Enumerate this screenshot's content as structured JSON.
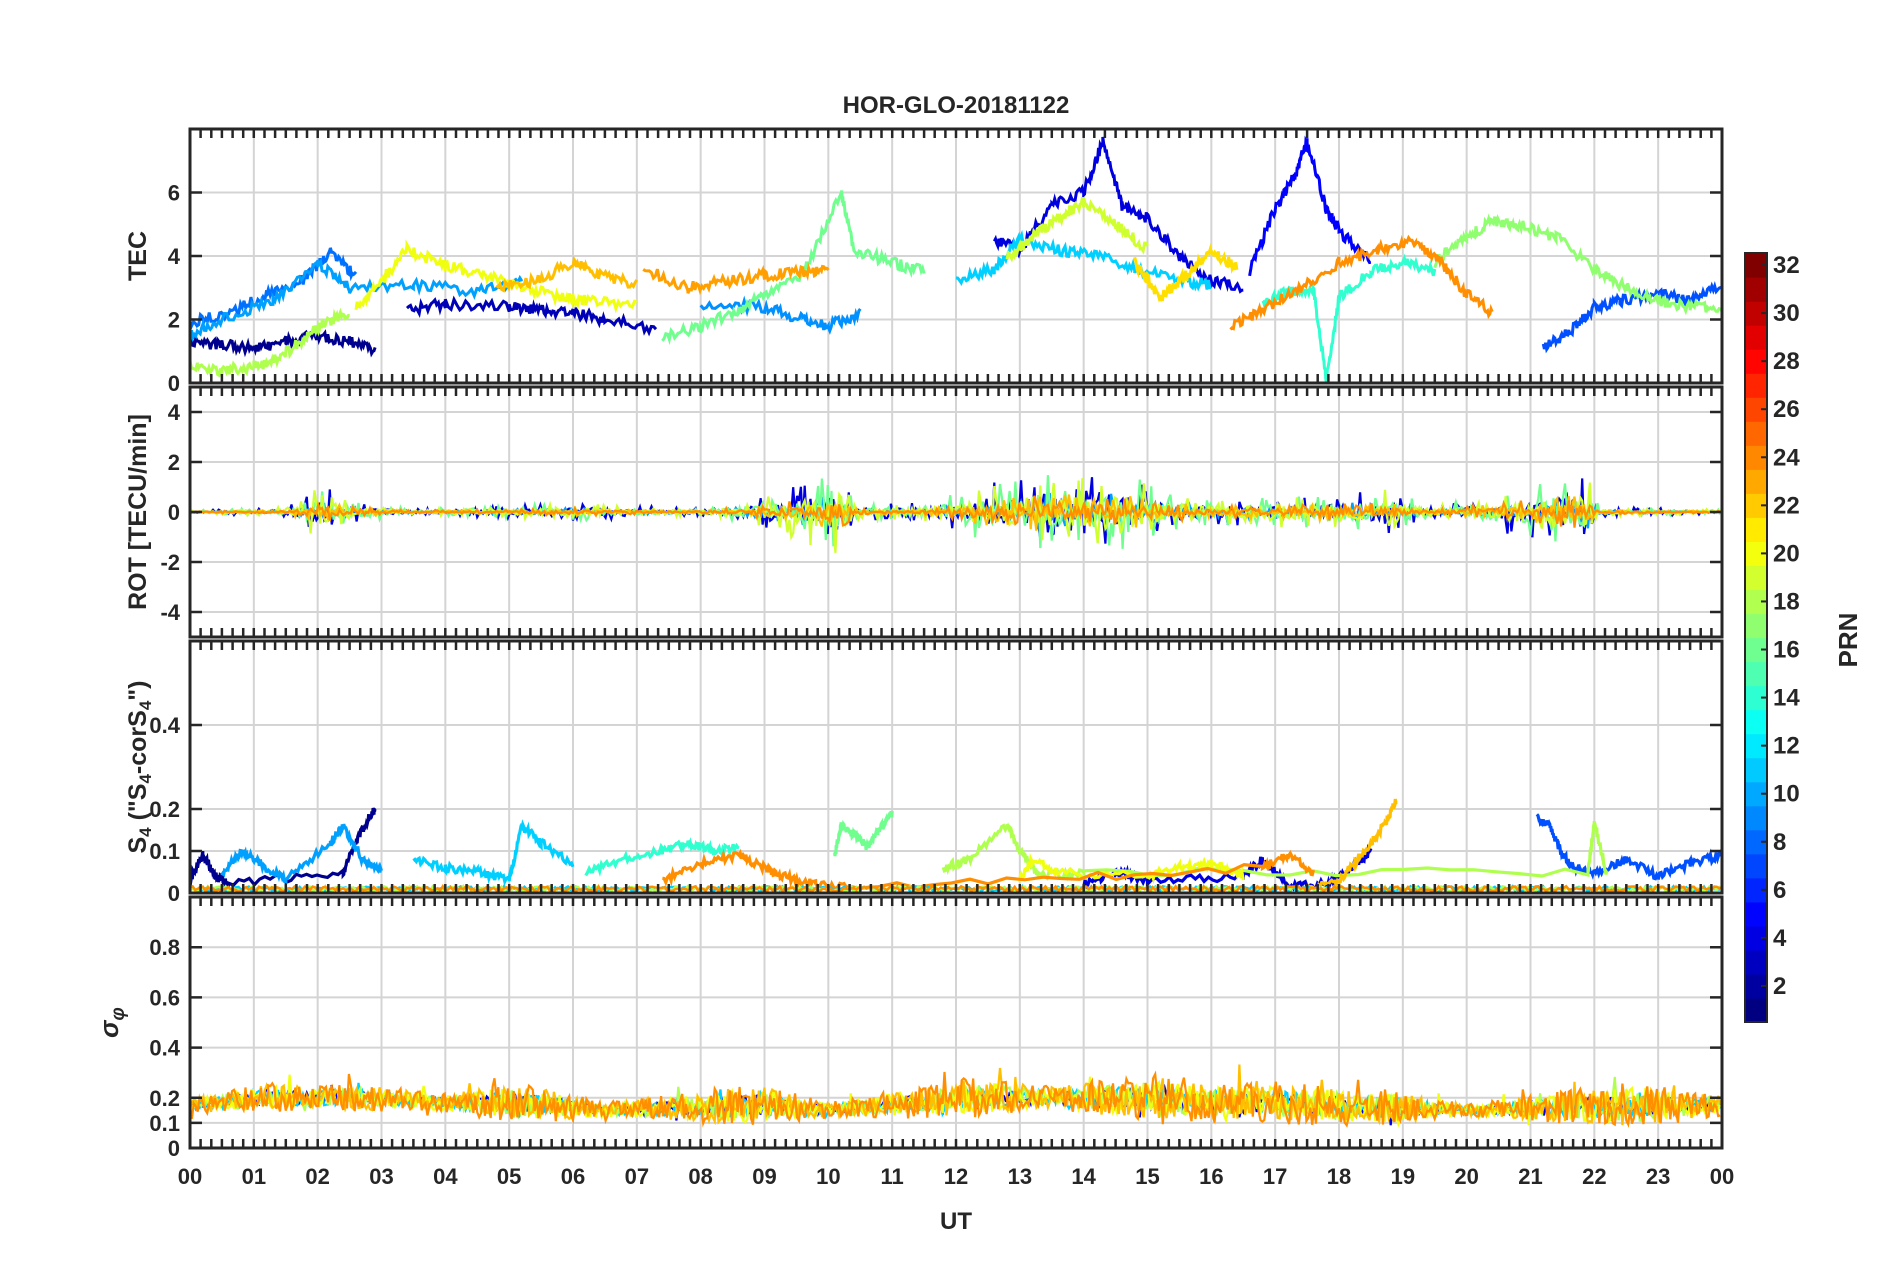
{
  "figure": {
    "title": "HOR-GLO-20181122",
    "xlabel": "UT",
    "colorbar_label": "PRN"
  },
  "chart_data": [
    {
      "type": "line",
      "panel": "tec",
      "ylabel": "TEC",
      "ylim": [
        0,
        8
      ],
      "yticks": [
        "0",
        "2",
        "4",
        "6"
      ],
      "x_unit": "hour UT",
      "xlim": [
        0,
        24
      ],
      "grid": true,
      "series": [
        {
          "prn": 1,
          "color": "#00008f",
          "x": [
            0,
            0.5,
            1,
            1.5,
            2,
            2.5,
            2.9
          ],
          "y": [
            1.3,
            1.2,
            1.1,
            1.3,
            1.5,
            1.3,
            1.0
          ]
        },
        {
          "prn": 2,
          "color": "#0000b7",
          "x": [
            3.4,
            4,
            5,
            5.5,
            6,
            6.5,
            7.3
          ],
          "y": [
            2.3,
            2.5,
            2.4,
            2.3,
            2.2,
            2.0,
            1.7
          ]
        },
        {
          "prn": 3,
          "color": "#0000df",
          "x": [
            12.6,
            13,
            13.5,
            14,
            14.3,
            14.6,
            15,
            15.5,
            16,
            16.5
          ],
          "y": [
            4.5,
            4.2,
            5.6,
            6.0,
            7.6,
            5.6,
            5.2,
            4.0,
            3.2,
            3.0
          ]
        },
        {
          "prn": 4,
          "color": "#0000ff",
          "x": [
            16.6,
            17,
            17.3,
            17.5,
            17.8,
            18,
            18.5
          ],
          "y": [
            3.5,
            5.5,
            6.5,
            7.6,
            5.5,
            4.8,
            3.8
          ]
        },
        {
          "prn": 6,
          "color": "#0050ff",
          "x": [
            21.2,
            21.6,
            22,
            22.4,
            23,
            23.5,
            24
          ],
          "y": [
            1.1,
            1.6,
            2.4,
            2.6,
            2.8,
            2.6,
            3.1
          ]
        },
        {
          "prn": 7,
          "color": "#0070ff",
          "x": [
            0,
            0.6,
            1.2,
            1.8,
            2.2,
            2.6
          ],
          "y": [
            1.9,
            2.2,
            2.8,
            3.3,
            4.1,
            3.4
          ]
        },
        {
          "prn": 8,
          "color": "#0090ff",
          "x": [
            8,
            9,
            9.6,
            10,
            10.5
          ],
          "y": [
            2.5,
            2.4,
            2.0,
            1.8,
            2.2
          ]
        },
        {
          "prn": 9,
          "color": "#00a0ff",
          "x": [
            0,
            0.5,
            1.3,
            2,
            2.5,
            3.5,
            4.5,
            5.2
          ],
          "y": [
            1.5,
            2.0,
            2.6,
            3.8,
            3.0,
            3.1,
            2.9,
            3.2
          ]
        },
        {
          "prn": 11,
          "color": "#00d0ff",
          "x": [
            12,
            12.6,
            13,
            13.6,
            14.2,
            14.8,
            15.5,
            16
          ],
          "y": [
            3.2,
            3.6,
            4.5,
            4.2,
            4.0,
            3.6,
            3.2,
            3.1
          ]
        },
        {
          "prn": 14,
          "color": "#30ffcf",
          "x": [
            16.8,
            17.2,
            17.6,
            17.8,
            18,
            18.5,
            19,
            19.5
          ],
          "y": [
            2.5,
            2.9,
            3.0,
            0.1,
            2.7,
            3.5,
            3.8,
            3.5
          ]
        },
        {
          "prn": 16,
          "color": "#70ff8f",
          "x": [
            7.4,
            8,
            8.6,
            9,
            9.6,
            10.2,
            10.4,
            11,
            11.5
          ],
          "y": [
            1.4,
            1.8,
            2.3,
            2.8,
            3.4,
            6.0,
            4.2,
            3.8,
            3.5
          ]
        },
        {
          "prn": 17,
          "color": "#90ff6f",
          "x": [
            19.5,
            20,
            20.4,
            20.8,
            21.4,
            22,
            22.5,
            23,
            23.5,
            24
          ],
          "y": [
            3.8,
            4.6,
            5.1,
            5.0,
            4.6,
            3.6,
            3.0,
            2.6,
            2.4,
            2.3
          ]
        },
        {
          "prn": 18,
          "color": "#afff4f",
          "x": [
            0,
            0.5,
            1,
            1.4,
            1.8,
            2.1,
            2.5
          ],
          "y": [
            0.6,
            0.4,
            0.5,
            0.8,
            1.4,
            1.9,
            2.2
          ]
        },
        {
          "prn": 19,
          "color": "#cfff2f",
          "x": [
            12.8,
            13.2,
            13.6,
            14,
            14.5,
            15
          ],
          "y": [
            3.9,
            4.6,
            5.2,
            5.7,
            5.0,
            4.2
          ]
        },
        {
          "prn": 20,
          "color": "#efff0f",
          "x": [
            2.6,
            3,
            3.4,
            4,
            4.6,
            5.2,
            5.8,
            6.2,
            7
          ],
          "y": [
            2.4,
            3.2,
            4.2,
            3.7,
            3.4,
            3.0,
            2.7,
            2.6,
            2.4
          ]
        },
        {
          "prn": 21,
          "color": "#ffdf00",
          "x": [
            14.8,
            15.2,
            15.6,
            16,
            16.4
          ],
          "y": [
            3.8,
            2.7,
            3.4,
            4.1,
            3.7
          ]
        },
        {
          "prn": 22,
          "color": "#ffbf00",
          "x": [
            4.8,
            5.4,
            6,
            6.4,
            7
          ],
          "y": [
            3.0,
            3.2,
            3.8,
            3.4,
            3.1
          ]
        },
        {
          "prn": 23,
          "color": "#ff9f00",
          "x": [
            7.1,
            7.8,
            8.4,
            9,
            9.6,
            10
          ],
          "y": [
            3.6,
            3.0,
            3.2,
            3.4,
            3.5,
            3.6
          ]
        },
        {
          "prn": 24,
          "color": "#ff8f00",
          "x": [
            16.3,
            16.8,
            17.4,
            18,
            18.6,
            19.2,
            19.6,
            20,
            20.4
          ],
          "y": [
            1.8,
            2.3,
            3.0,
            3.8,
            4.2,
            4.5,
            3.8,
            2.8,
            2.2
          ]
        }
      ]
    },
    {
      "type": "line",
      "panel": "rot",
      "ylabel": "ROT [TECU/min]",
      "ylim": [
        -5,
        5
      ],
      "yticks": [
        "-4",
        "-2",
        "0",
        "2",
        "4"
      ],
      "xlim": [
        0,
        24
      ],
      "grid": true,
      "noise_envelope": [
        {
          "x": 0,
          "amp": 0.08
        },
        {
          "x": 1.5,
          "amp": 0.2
        },
        {
          "x": 2.1,
          "amp": 1.3
        },
        {
          "x": 2.4,
          "amp": 0.5
        },
        {
          "x": 3.5,
          "amp": 0.12
        },
        {
          "x": 6,
          "amp": 0.35
        },
        {
          "x": 8,
          "amp": 0.15
        },
        {
          "x": 9,
          "amp": 0.6
        },
        {
          "x": 10.2,
          "amp": 1.8
        },
        {
          "x": 10.4,
          "amp": 0.3
        },
        {
          "x": 11.7,
          "amp": 0.4
        },
        {
          "x": 12.2,
          "amp": 1.1
        },
        {
          "x": 13,
          "amp": 1.3
        },
        {
          "x": 13.3,
          "amp": 1.9
        },
        {
          "x": 14,
          "amp": 1.4
        },
        {
          "x": 14.4,
          "amp": 1.8
        },
        {
          "x": 15.2,
          "amp": 1.0
        },
        {
          "x": 16,
          "amp": 0.5
        },
        {
          "x": 18.8,
          "amp": 0.9
        },
        {
          "x": 19.5,
          "amp": 0.25
        },
        {
          "x": 21.9,
          "amp": 1.6
        },
        {
          "x": 22.1,
          "amp": 0.2
        },
        {
          "x": 24,
          "amp": 0.1
        }
      ],
      "series": [
        {
          "prn": 3,
          "color": "#0000df"
        },
        {
          "prn": 9,
          "color": "#00a0ff"
        },
        {
          "prn": 16,
          "color": "#70ff8f"
        },
        {
          "prn": 19,
          "color": "#cfff2f"
        },
        {
          "prn": 22,
          "color": "#ffbf00"
        },
        {
          "prn": 24,
          "color": "#ff8f00"
        }
      ]
    },
    {
      "type": "line",
      "panel": "s4",
      "ylabel_main": "S",
      "ylabel_sub": "4",
      "ylabel_mid": " (\"S",
      "ylabel_sub2": "4",
      "ylabel_end": "-corS",
      "ylabel_sub3": "4",
      "ylabel_close": "\")",
      "ylim": [
        0,
        0.6
      ],
      "yticks": [
        "0",
        "0.1",
        "0.2",
        "0.4"
      ],
      "xlim": [
        0,
        24
      ],
      "grid": true,
      "series": [
        {
          "prn": 1,
          "color": "#00008f",
          "x": [
            0,
            0.2,
            0.4,
            0.6,
            2.4,
            2.6,
            2.8,
            2.9
          ],
          "y": [
            0.03,
            0.09,
            0.04,
            0.02,
            0.05,
            0.12,
            0.18,
            0.2
          ]
        },
        {
          "prn": 3,
          "color": "#0000df",
          "x": [
            14,
            14.5,
            15,
            16.5,
            16.8,
            17.2,
            17.8,
            18.2,
            18.5
          ],
          "y": [
            0.02,
            0.05,
            0.03,
            0.04,
            0.08,
            0.02,
            0.02,
            0.06,
            0.1
          ]
        },
        {
          "prn": 6,
          "color": "#0050ff",
          "x": [
            21.1,
            21.3,
            21.5,
            21.7,
            22,
            22.5,
            23,
            23.5,
            24
          ],
          "y": [
            0.18,
            0.16,
            0.09,
            0.06,
            0.05,
            0.08,
            0.04,
            0.07,
            0.09
          ]
        },
        {
          "prn": 9,
          "color": "#00a0ff",
          "x": [
            0.5,
            0.8,
            1.1,
            1.5,
            2.2,
            2.4,
            2.7,
            3
          ],
          "y": [
            0.04,
            0.1,
            0.07,
            0.03,
            0.12,
            0.16,
            0.08,
            0.05
          ]
        },
        {
          "prn": 11,
          "color": "#00d0ff",
          "x": [
            3.5,
            4,
            4.5,
            5,
            5.2,
            5.5,
            6
          ],
          "y": [
            0.08,
            0.06,
            0.05,
            0.03,
            0.16,
            0.12,
            0.07
          ]
        },
        {
          "prn": 14,
          "color": "#30ffcf",
          "x": [
            6.2,
            6.8,
            7.4,
            7.8,
            8.2,
            8.6
          ],
          "y": [
            0.05,
            0.08,
            0.1,
            0.12,
            0.1,
            0.11
          ]
        },
        {
          "prn": 16,
          "color": "#70ff8f",
          "x": [
            10.1,
            10.2,
            10.4,
            10.6,
            10.8,
            11
          ],
          "y": [
            0.09,
            0.16,
            0.14,
            0.11,
            0.15,
            0.19
          ]
        },
        {
          "prn": 18,
          "color": "#afff4f",
          "x": [
            11.8,
            12.2,
            12.8,
            13,
            13.3,
            14,
            21.9,
            22,
            22.2
          ],
          "y": [
            0.06,
            0.08,
            0.16,
            0.1,
            0.04,
            0.05,
            0.05,
            0.17,
            0.04
          ]
        },
        {
          "prn": 20,
          "color": "#efff0f",
          "x": [
            13,
            13.2,
            13.6,
            15,
            15.5,
            16,
            16.5
          ],
          "y": [
            0.03,
            0.08,
            0.05,
            0.04,
            0.06,
            0.07,
            0.04
          ]
        },
        {
          "prn": 22,
          "color": "#ffbf00",
          "x": [
            17.5,
            18,
            18.4,
            18.7,
            18.9
          ],
          "y": [
            0.01,
            0.03,
            0.1,
            0.16,
            0.22
          ]
        },
        {
          "prn": 24,
          "color": "#ff8f00",
          "x": [
            7.4,
            8,
            8.6,
            9,
            9.3,
            9.8,
            10.5,
            16.8,
            17.2,
            17.6
          ],
          "y": [
            0.03,
            0.07,
            0.09,
            0.06,
            0.04,
            0.02,
            0.01,
            0.06,
            0.09,
            0.05
          ]
        }
      ]
    },
    {
      "type": "line",
      "panel": "sigma_phi",
      "ylabel_symbol": "σ",
      "ylabel_sub": "φ",
      "ylim": [
        0,
        1
      ],
      "yticks": [
        "0",
        "0.1",
        "0.2",
        "0.4",
        "0.6",
        "0.8"
      ],
      "xlim": [
        0,
        24
      ],
      "grid": true,
      "noise_envelope": [
        {
          "x": 0,
          "base": 0.17,
          "amp": 0.08
        },
        {
          "x": 1.2,
          "base": 0.2,
          "amp": 0.15
        },
        {
          "x": 2.5,
          "base": 0.2,
          "amp": 0.13
        },
        {
          "x": 4,
          "base": 0.18,
          "amp": 0.1
        },
        {
          "x": 5.2,
          "base": 0.18,
          "amp": 0.2
        },
        {
          "x": 6.5,
          "base": 0.15,
          "amp": 0.08
        },
        {
          "x": 8.9,
          "base": 0.17,
          "amp": 0.22
        },
        {
          "x": 10,
          "base": 0.15,
          "amp": 0.08
        },
        {
          "x": 12.2,
          "base": 0.2,
          "amp": 0.2
        },
        {
          "x": 13.5,
          "base": 0.2,
          "amp": 0.12
        },
        {
          "x": 15.2,
          "base": 0.2,
          "amp": 0.24
        },
        {
          "x": 16,
          "base": 0.18,
          "amp": 0.2
        },
        {
          "x": 17,
          "base": 0.18,
          "amp": 0.21
        },
        {
          "x": 18.8,
          "base": 0.16,
          "amp": 0.18
        },
        {
          "x": 20,
          "base": 0.15,
          "amp": 0.06
        },
        {
          "x": 22.7,
          "base": 0.17,
          "amp": 0.24
        },
        {
          "x": 24,
          "base": 0.17,
          "amp": 0.1
        }
      ],
      "series": [
        {
          "prn": 3,
          "color": "#0000df"
        },
        {
          "prn": 11,
          "color": "#00d0ff"
        },
        {
          "prn": 18,
          "color": "#afff4f"
        },
        {
          "prn": 20,
          "color": "#efff0f"
        },
        {
          "prn": 22,
          "color": "#ffbf00"
        },
        {
          "prn": 24,
          "color": "#ff8f00"
        }
      ]
    }
  ],
  "xticks": [
    "00",
    "01",
    "02",
    "03",
    "04",
    "05",
    "06",
    "07",
    "08",
    "09",
    "10",
    "11",
    "12",
    "13",
    "14",
    "15",
    "16",
    "17",
    "18",
    "19",
    "20",
    "21",
    "22",
    "23",
    "00"
  ],
  "colorbar": {
    "range": [
      1,
      32
    ],
    "ticks": [
      "2",
      "4",
      "6",
      "8",
      "10",
      "12",
      "14",
      "16",
      "18",
      "20",
      "22",
      "24",
      "26",
      "28",
      "30",
      "32"
    ],
    "colormap": "jet"
  }
}
